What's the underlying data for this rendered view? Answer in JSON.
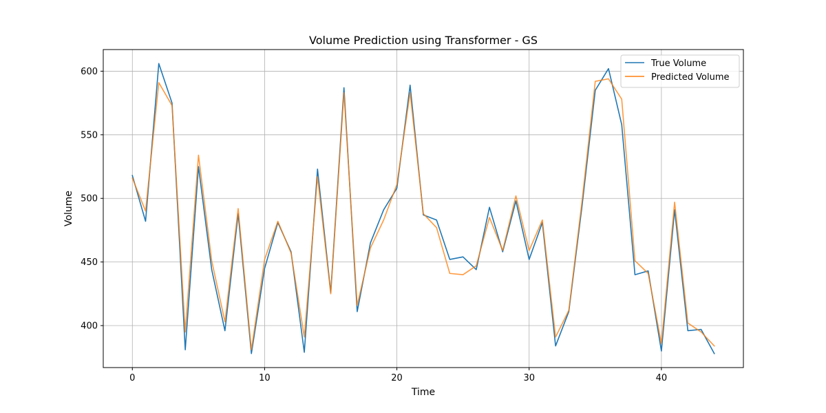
{
  "chart_data": {
    "type": "line",
    "title": "Volume Prediction using Transformer - GS",
    "xlabel": "Time",
    "ylabel": "Volume",
    "xlim": [
      -2.2,
      46.2
    ],
    "ylim": [
      367,
      617
    ],
    "xticks": [
      0,
      10,
      20,
      30,
      40
    ],
    "yticks": [
      400,
      450,
      500,
      550,
      600
    ],
    "grid": true,
    "legend_position": "top-right",
    "x": [
      0,
      1,
      2,
      3,
      4,
      5,
      6,
      7,
      8,
      9,
      10,
      11,
      12,
      13,
      14,
      15,
      16,
      17,
      18,
      19,
      20,
      21,
      22,
      23,
      24,
      25,
      26,
      27,
      28,
      29,
      30,
      31,
      32,
      33,
      34,
      35,
      36,
      37,
      38,
      39,
      40,
      41,
      42,
      43,
      44
    ],
    "series": [
      {
        "name": "True Volume",
        "color": "#1f77b4",
        "values": [
          518,
          482,
          606,
          575,
          381,
          525,
          444,
          396,
          488,
          378,
          445,
          481,
          458,
          379,
          523,
          426,
          587,
          411,
          465,
          491,
          508,
          589,
          487,
          483,
          452,
          454,
          444,
          493,
          458,
          498,
          452,
          481,
          384,
          411,
          494,
          585,
          602,
          558,
          440,
          443,
          380,
          491,
          396,
          397,
          378
        ]
      },
      {
        "name": "Predicted Volume",
        "color": "#ff7f0e",
        "values": [
          516,
          490,
          591,
          573,
          395,
          534,
          451,
          403,
          492,
          381,
          452,
          482,
          457,
          391,
          517,
          425,
          583,
          416,
          461,
          483,
          511,
          583,
          488,
          477,
          441,
          440,
          447,
          485,
          459,
          502,
          459,
          483,
          391,
          412,
          498,
          592,
          594,
          578,
          451,
          441,
          386,
          497,
          402,
          395,
          384
        ]
      }
    ]
  }
}
